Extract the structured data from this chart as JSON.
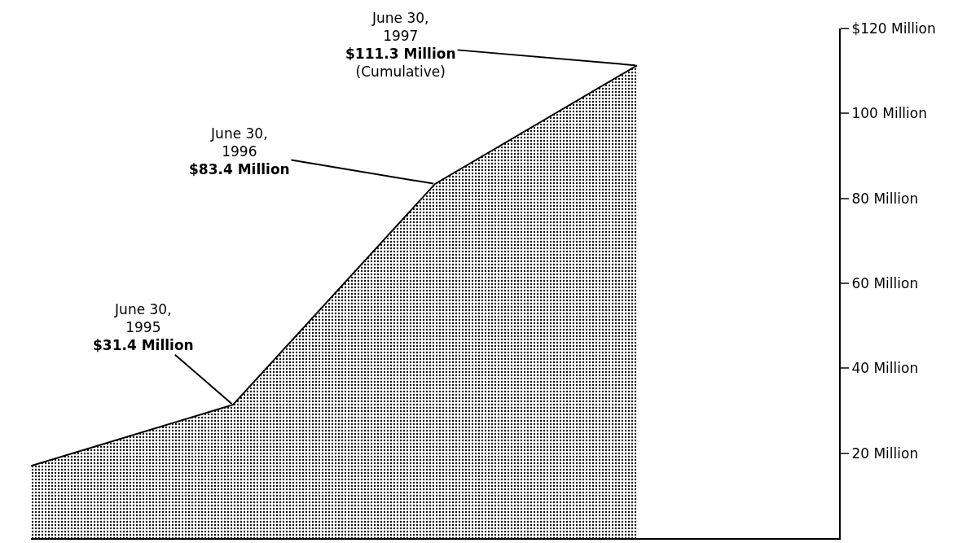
{
  "chart_data": {
    "type": "area",
    "categories": [
      null,
      null,
      null,
      null
    ],
    "series": [
      {
        "color": "#000000",
        "values": [
          17,
          31.4,
          83.4,
          111.3
        ]
      }
    ],
    "ylim": [
      0,
      120
    ],
    "yticks": [
      {
        "value": 20,
        "label": "20 Million"
      },
      {
        "value": 40,
        "label": "40 Million"
      },
      {
        "value": 60,
        "label": "60 Million"
      },
      {
        "value": 80,
        "label": "80 Million"
      },
      {
        "value": 100,
        "label": "100 Million"
      },
      {
        "value": 120,
        "label": "$120 Million"
      }
    ],
    "tick_labels": "y",
    "grid": false,
    "annotations": [
      "June 30,\n1995\n$31.4 Million",
      "June 30,\n1996\n$83.4 Million",
      "June 30,\n1997\n$111.3 Million\n(Cumulative)"
    ]
  }
}
